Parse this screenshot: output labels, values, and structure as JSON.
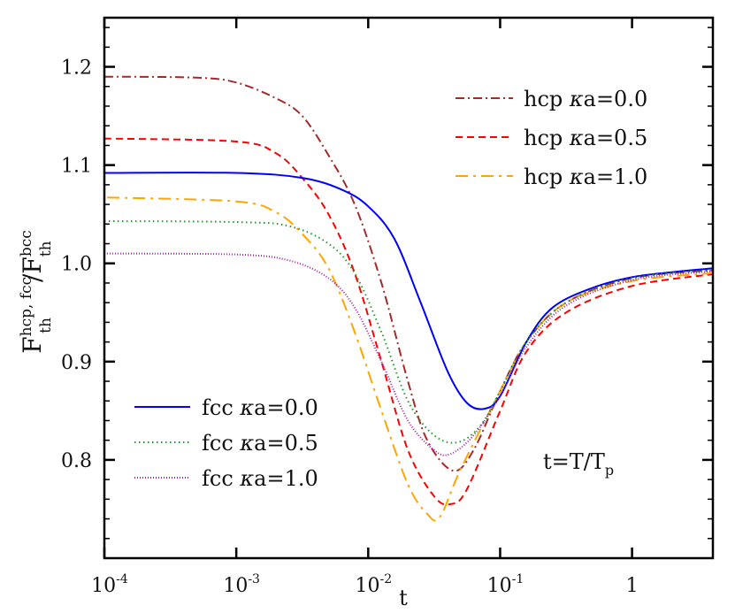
{
  "chart_data": {
    "type": "line",
    "xlabel": "t",
    "ylabel": {
      "base": "F",
      "sub": "th",
      "sup": "hcp, fcc",
      "sep": "/",
      "base2": "F",
      "sub2": "th",
      "sup2": "bcc"
    },
    "annotation": {
      "main": "t=T/T",
      "sub": "p"
    },
    "x_scale": "log",
    "xlim": [
      0.0001,
      4.1
    ],
    "ylim": [
      0.7,
      1.25
    ],
    "grid": false,
    "x_ticks": [
      {
        "value": 0.0001,
        "base": "10",
        "exp": "-4"
      },
      {
        "value": 0.001,
        "base": "10",
        "exp": "-3"
      },
      {
        "value": 0.01,
        "base": "10",
        "exp": "-2"
      },
      {
        "value": 0.1,
        "base": "10",
        "exp": "-1"
      },
      {
        "value": 1,
        "base": "1",
        "exp": ""
      }
    ],
    "y_ticks": [
      0.8,
      0.9,
      1.0,
      1.1,
      1.2
    ],
    "y_tick_labels": [
      "0.8",
      "0.9",
      "1.0",
      "1.1",
      "1.2"
    ],
    "legends": [
      {
        "placement": "top-right",
        "series": [
          0,
          1,
          2
        ]
      },
      {
        "placement": "bottom-left",
        "series": [
          3,
          4,
          5
        ]
      }
    ],
    "series": [
      {
        "name": "hcp κa=0.0",
        "prefix": "hcp ",
        "kappa": "κ",
        "suffix": "a=0.0",
        "color": "#a52a2a",
        "dash": "10,4,2,4",
        "points": [
          [
            0.0001,
            1.19
          ],
          [
            0.0005,
            1.189
          ],
          [
            0.001,
            1.184
          ],
          [
            0.002,
            1.168
          ],
          [
            0.00316,
            1.15
          ],
          [
            0.005,
            1.11
          ],
          [
            0.0079,
            1.06
          ],
          [
            0.0126,
            0.98
          ],
          [
            0.02,
            0.88
          ],
          [
            0.028,
            0.82
          ],
          [
            0.044,
            0.789
          ],
          [
            0.063,
            0.81
          ],
          [
            0.1,
            0.87
          ],
          [
            0.158,
            0.92
          ],
          [
            0.316,
            0.96
          ],
          [
            1,
            0.985
          ],
          [
            4.1,
            0.993
          ]
        ]
      },
      {
        "name": "hcp κa=0.5",
        "prefix": "hcp ",
        "kappa": "κ",
        "suffix": "a=0.5",
        "color": "#ff0000",
        "dash": "8,5",
        "points": [
          [
            0.0001,
            1.127
          ],
          [
            0.001,
            1.124
          ],
          [
            0.002,
            1.112
          ],
          [
            0.00316,
            1.087
          ],
          [
            0.005,
            1.05
          ],
          [
            0.0079,
            0.99
          ],
          [
            0.0126,
            0.9
          ],
          [
            0.02,
            0.81
          ],
          [
            0.0316,
            0.763
          ],
          [
            0.042,
            0.755
          ],
          [
            0.056,
            0.77
          ],
          [
            0.1,
            0.85
          ],
          [
            0.158,
            0.91
          ],
          [
            0.316,
            0.95
          ],
          [
            1,
            0.977
          ],
          [
            4.1,
            0.989
          ]
        ]
      },
      {
        "name": "hcp κa=1.0",
        "prefix": "hcp ",
        "kappa": "κ",
        "suffix": "a=1.0",
        "color": "#ffa500",
        "dash": "14,6,3,6",
        "points": [
          [
            0.000105,
            1.067
          ],
          [
            0.001,
            1.063
          ],
          [
            0.002,
            1.052
          ],
          [
            0.00316,
            1.03
          ],
          [
            0.005,
            0.995
          ],
          [
            0.0079,
            0.93
          ],
          [
            0.0126,
            0.85
          ],
          [
            0.02,
            0.775
          ],
          [
            0.028,
            0.745
          ],
          [
            0.035,
            0.742
          ],
          [
            0.05,
            0.79
          ],
          [
            0.1,
            0.87
          ],
          [
            0.158,
            0.92
          ],
          [
            0.316,
            0.96
          ],
          [
            1,
            0.982
          ],
          [
            4.1,
            0.99
          ]
        ]
      },
      {
        "name": "fcc κa=0.0",
        "prefix": "fcc ",
        "kappa": "κ",
        "suffix": "a=0.0",
        "color": "#0000ff",
        "dash": "",
        "points": [
          [
            0.0001,
            1.092
          ],
          [
            0.001,
            1.092
          ],
          [
            0.00316,
            1.087
          ],
          [
            0.0063,
            1.075
          ],
          [
            0.01,
            1.058
          ],
          [
            0.0158,
            1.025
          ],
          [
            0.025,
            0.96
          ],
          [
            0.04,
            0.89
          ],
          [
            0.056,
            0.858
          ],
          [
            0.076,
            0.852
          ],
          [
            0.1,
            0.865
          ],
          [
            0.158,
            0.92
          ],
          [
            0.25,
            0.955
          ],
          [
            0.5,
            0.975
          ],
          [
            1,
            0.986
          ],
          [
            2,
            0.991
          ],
          [
            4.1,
            0.995
          ]
        ]
      },
      {
        "name": "fcc κa=0.5",
        "prefix": "fcc ",
        "kappa": "κ",
        "suffix": "a=0.5",
        "color": "#22992a",
        "dash": "1.5,3.5",
        "points": [
          [
            0.0001,
            1.043
          ],
          [
            0.001,
            1.042
          ],
          [
            0.0025,
            1.038
          ],
          [
            0.005,
            1.02
          ],
          [
            0.0079,
            0.99
          ],
          [
            0.0126,
            0.93
          ],
          [
            0.02,
            0.86
          ],
          [
            0.0316,
            0.825
          ],
          [
            0.048,
            0.818
          ],
          [
            0.071,
            0.835
          ],
          [
            0.1,
            0.87
          ],
          [
            0.158,
            0.92
          ],
          [
            0.316,
            0.96
          ],
          [
            1,
            0.985
          ],
          [
            4.1,
            0.993
          ]
        ]
      },
      {
        "name": "fcc κa=1.0",
        "prefix": "fcc ",
        "kappa": "κ",
        "suffix": "a=1.0",
        "color": "#a020a0",
        "dash": "1,2",
        "points": [
          [
            0.0001,
            1.01
          ],
          [
            0.001,
            1.009
          ],
          [
            0.0025,
            1.003
          ],
          [
            0.005,
            0.985
          ],
          [
            0.0079,
            0.955
          ],
          [
            0.0126,
            0.9
          ],
          [
            0.02,
            0.84
          ],
          [
            0.0316,
            0.81
          ],
          [
            0.042,
            0.806
          ],
          [
            0.063,
            0.825
          ],
          [
            0.1,
            0.865
          ],
          [
            0.158,
            0.915
          ],
          [
            0.316,
            0.957
          ],
          [
            1,
            0.983
          ],
          [
            4.1,
            0.992
          ]
        ]
      }
    ]
  }
}
